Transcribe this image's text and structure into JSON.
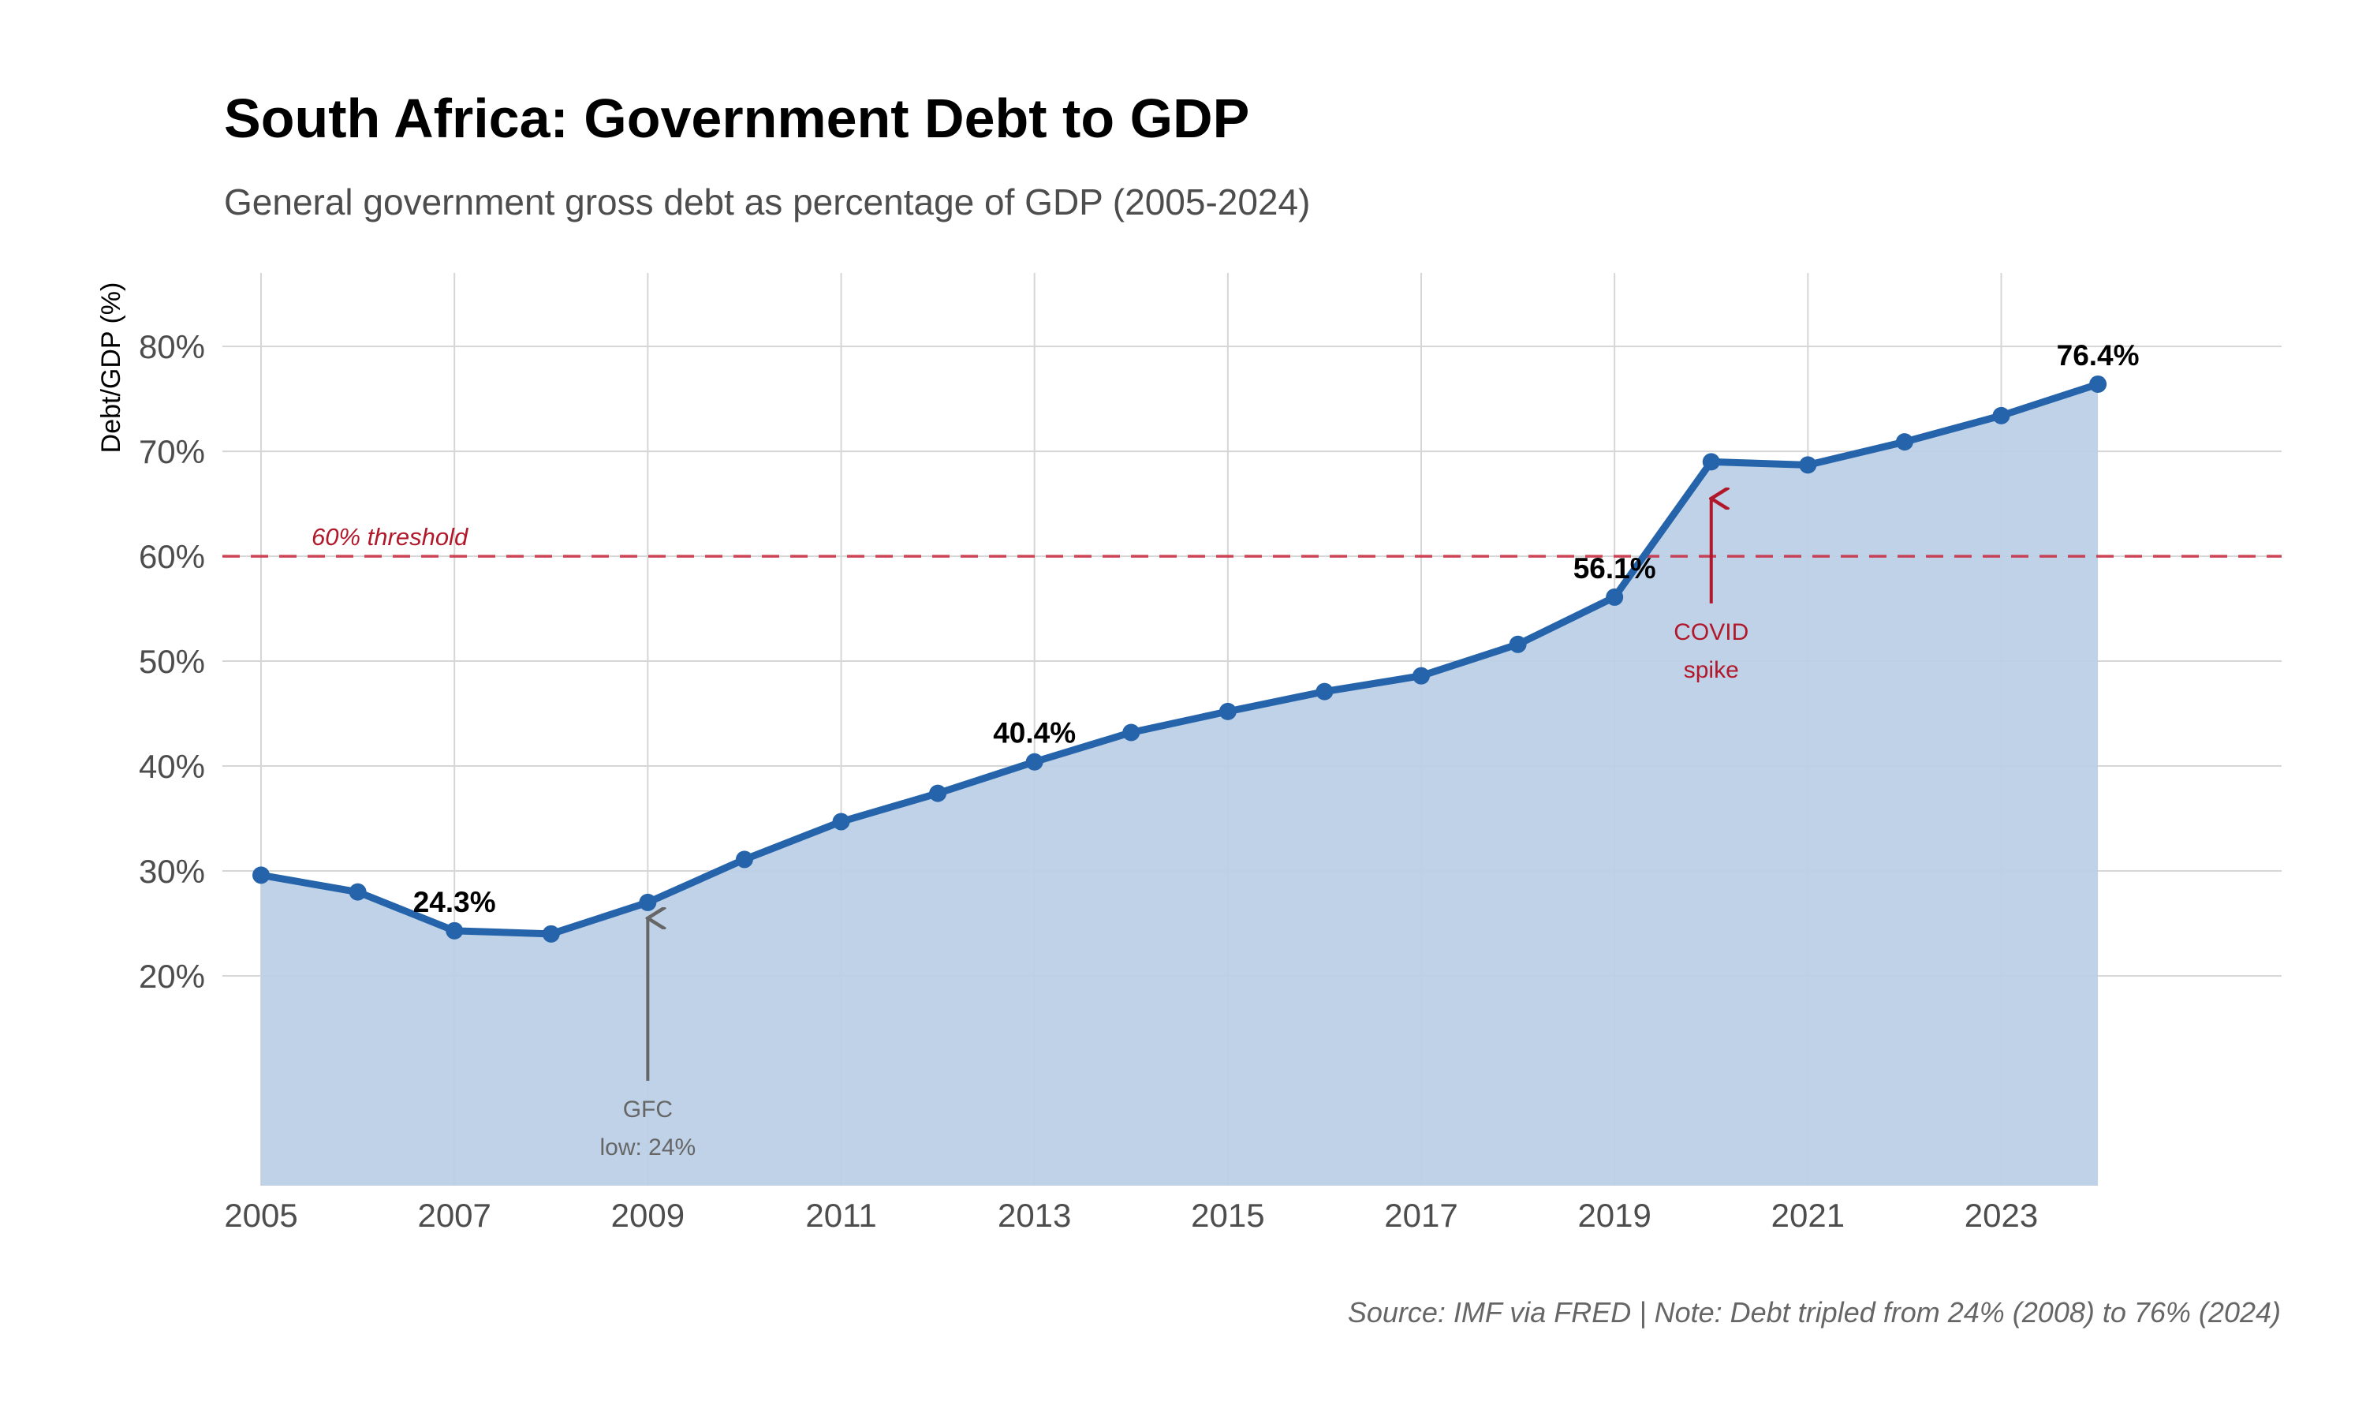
{
  "colors": {
    "line": "#2563ab",
    "area": "#bcd0e6",
    "threshold": "#c8283c",
    "annotation_red": "#b2182b",
    "annotation_gray": "#666666",
    "grid": "#d6d6d6"
  },
  "chart_data": {
    "type": "area",
    "title": "South Africa: Government Debt to GDP",
    "subtitle": "General government gross debt as percentage of GDP (2005-2024)",
    "ylabel": "Debt/GDP (%)",
    "xlabel": "",
    "caption": "Source: IMF via FRED | Note: Debt tripled from 24% (2008) to 76% (2024)",
    "x": [
      2005,
      2006,
      2007,
      2008,
      2009,
      2010,
      2011,
      2012,
      2013,
      2014,
      2015,
      2016,
      2017,
      2018,
      2019,
      2020,
      2021,
      2022,
      2023,
      2024
    ],
    "values": [
      29.6,
      28.0,
      24.3,
      24.0,
      27.0,
      31.1,
      34.7,
      37.4,
      40.4,
      43.2,
      45.2,
      47.1,
      48.6,
      51.6,
      56.1,
      69.0,
      68.7,
      70.9,
      73.4,
      76.4
    ],
    "xlim": [
      2004.6,
      2025.9
    ],
    "ylim": [
      0,
      87
    ],
    "x_ticks": [
      2005,
      2007,
      2009,
      2011,
      2013,
      2015,
      2017,
      2019,
      2021,
      2023
    ],
    "x_tick_labels": [
      "2005",
      "2007",
      "2009",
      "2011",
      "2013",
      "2015",
      "2017",
      "2019",
      "2021",
      "2023"
    ],
    "y_ticks": [
      20,
      30,
      40,
      50,
      60,
      70,
      80
    ],
    "y_tick_labels": [
      "20%",
      "30%",
      "40%",
      "50%",
      "60%",
      "70%",
      "80%"
    ],
    "grid": true,
    "threshold": {
      "value": 60,
      "label": "60% threshold"
    },
    "point_labels": [
      {
        "x": 2007,
        "y": 24.3,
        "text": "24.3%"
      },
      {
        "x": 2013,
        "y": 40.4,
        "text": "40.4%"
      },
      {
        "x": 2019,
        "y": 56.1,
        "text": "56.1%"
      },
      {
        "x": 2024,
        "y": 76.4,
        "text": "76.4%"
      }
    ],
    "annotations": [
      {
        "name": "gfc",
        "x": 2009,
        "y_tip": 25.5,
        "y_tail": 10,
        "lines": [
          "GFC",
          "low: 24%"
        ],
        "color": "#666666"
      },
      {
        "name": "covid",
        "x": 2020,
        "y_tip": 65.5,
        "y_tail": 55.5,
        "lines": [
          "COVID",
          "spike"
        ],
        "color": "#b2182b"
      }
    ]
  }
}
